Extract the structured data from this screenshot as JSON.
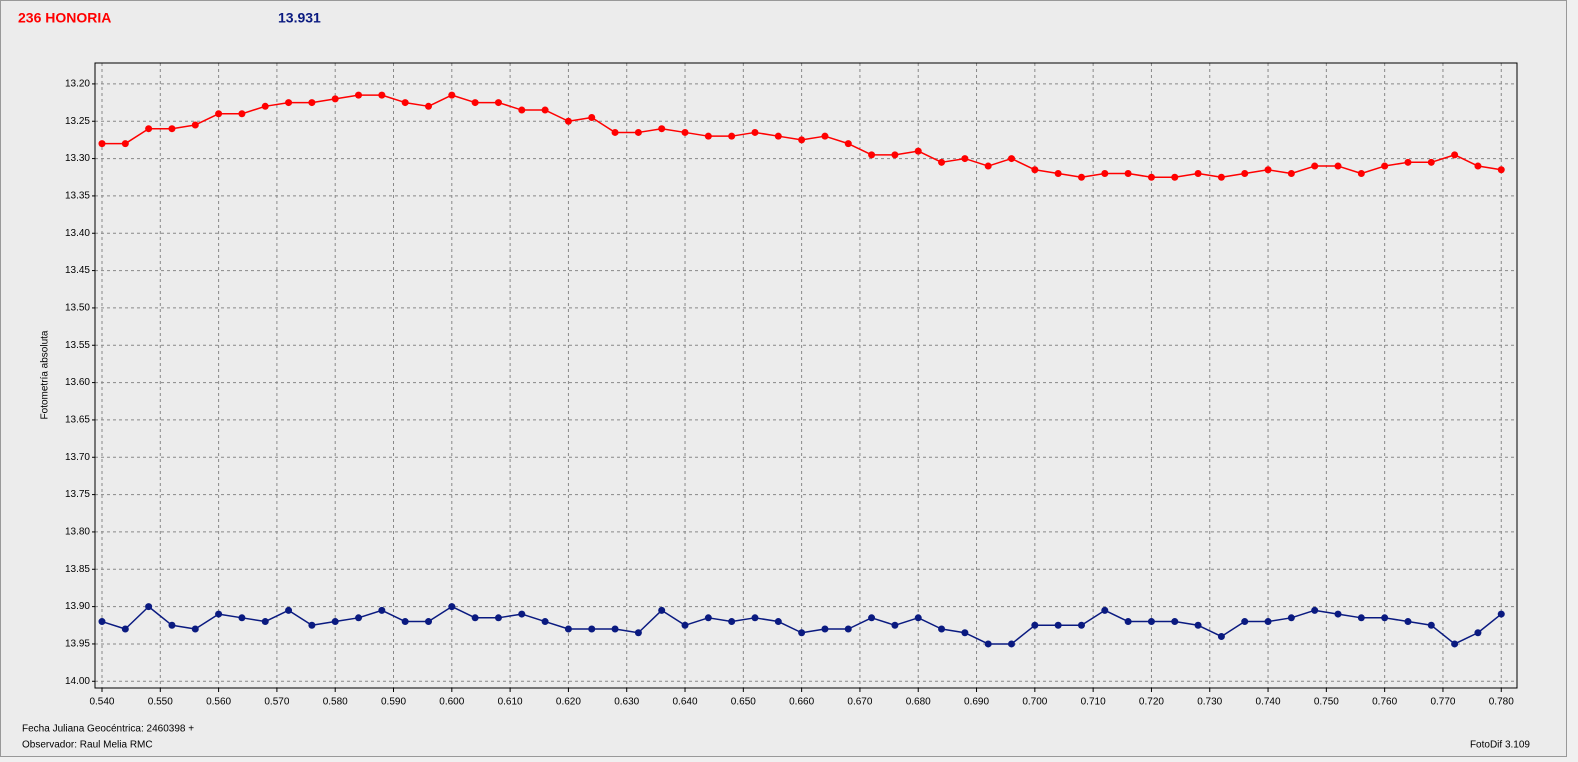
{
  "chart_data": {
    "type": "scatter",
    "title": "236 HONORIA",
    "subtitle": "13.931",
    "y_label": "Fotometría absoluta",
    "x_label": "Fecha Juliana Geocéntrica: 2460398 +",
    "observer": "Observador: Raul Melia RMC",
    "software": "FotoDif 3.109",
    "grid": true,
    "line": true,
    "xlim": [
      0.5388,
      0.7827
    ],
    "ylim": [
      14.009,
      13.172
    ],
    "xticks": [
      {
        "value": 0.54,
        "label": "0.540"
      },
      {
        "value": 0.55,
        "label": "0.550"
      },
      {
        "value": 0.56,
        "label": "0.560"
      },
      {
        "value": 0.57,
        "label": "0.570"
      },
      {
        "value": 0.58,
        "label": "0.580"
      },
      {
        "value": 0.59,
        "label": "0.590"
      },
      {
        "value": 0.6,
        "label": "0.600"
      },
      {
        "value": 0.61,
        "label": "0.610"
      },
      {
        "value": 0.62,
        "label": "0.620"
      },
      {
        "value": 0.63,
        "label": "0.630"
      },
      {
        "value": 0.64,
        "label": "0.640"
      },
      {
        "value": 0.65,
        "label": "0.650"
      },
      {
        "value": 0.66,
        "label": "0.660"
      },
      {
        "value": 0.67,
        "label": "0.670"
      },
      {
        "value": 0.68,
        "label": "0.680"
      },
      {
        "value": 0.69,
        "label": "0.690"
      },
      {
        "value": 0.7,
        "label": "0.700"
      },
      {
        "value": 0.71,
        "label": "0.710"
      },
      {
        "value": 0.72,
        "label": "0.720"
      },
      {
        "value": 0.73,
        "label": "0.730"
      },
      {
        "value": 0.74,
        "label": "0.740"
      },
      {
        "value": 0.75,
        "label": "0.750"
      },
      {
        "value": 0.76,
        "label": "0.760"
      },
      {
        "value": 0.77,
        "label": "0.770"
      },
      {
        "value": 0.78,
        "label": "0.780"
      }
    ],
    "yticks": [
      {
        "value": 13.2,
        "label": "13.20"
      },
      {
        "value": 13.25,
        "label": "13.25"
      },
      {
        "value": 13.3,
        "label": "13.30"
      },
      {
        "value": 13.35,
        "label": "13.35"
      },
      {
        "value": 13.4,
        "label": "13.40"
      },
      {
        "value": 13.45,
        "label": "13.45"
      },
      {
        "value": 13.5,
        "label": "13.50"
      },
      {
        "value": 13.55,
        "label": "13.55"
      },
      {
        "value": 13.6,
        "label": "13.60"
      },
      {
        "value": 13.65,
        "label": "13.65"
      },
      {
        "value": 13.7,
        "label": "13.70"
      },
      {
        "value": 13.75,
        "label": "13.75"
      },
      {
        "value": 13.8,
        "label": "13.80"
      },
      {
        "value": 13.85,
        "label": "13.85"
      },
      {
        "value": 13.9,
        "label": "13.90"
      },
      {
        "value": 13.95,
        "label": "13.95"
      },
      {
        "value": 14.0,
        "label": "14.00"
      }
    ],
    "x": [
      0.54,
      0.544,
      0.548,
      0.552,
      0.556,
      0.56,
      0.564,
      0.568,
      0.572,
      0.576,
      0.58,
      0.584,
      0.588,
      0.592,
      0.596,
      0.6,
      0.604,
      0.608,
      0.612,
      0.616,
      0.62,
      0.624,
      0.628,
      0.632,
      0.636,
      0.64,
      0.644,
      0.648,
      0.652,
      0.656,
      0.66,
      0.664,
      0.668,
      0.672,
      0.676,
      0.68,
      0.684,
      0.688,
      0.692,
      0.696,
      0.7,
      0.704,
      0.708,
      0.712,
      0.716,
      0.72,
      0.724,
      0.728,
      0.732,
      0.736,
      0.74,
      0.744,
      0.748,
      0.752,
      0.756,
      0.76,
      0.764,
      0.768,
      0.772,
      0.776,
      0.78
    ],
    "series": [
      {
        "color": "#ff0000",
        "values": [
          13.28,
          13.28,
          13.26,
          13.26,
          13.255,
          13.24,
          13.24,
          13.23,
          13.225,
          13.225,
          13.22,
          13.215,
          13.215,
          13.225,
          13.23,
          13.215,
          13.225,
          13.225,
          13.235,
          13.235,
          13.25,
          13.245,
          13.265,
          13.265,
          13.26,
          13.265,
          13.27,
          13.27,
          13.265,
          13.27,
          13.275,
          13.27,
          13.28,
          13.295,
          13.295,
          13.29,
          13.305,
          13.3,
          13.31,
          13.3,
          13.315,
          13.32,
          13.325,
          13.32,
          13.32,
          13.325,
          13.325,
          13.32,
          13.325,
          13.32,
          13.315,
          13.32,
          13.31,
          13.31,
          13.32,
          13.31,
          13.305,
          13.305,
          13.295,
          13.31,
          13.315
        ]
      },
      {
        "color": "#0a1a80",
        "values": [
          13.92,
          13.93,
          13.9,
          13.925,
          13.93,
          13.91,
          13.915,
          13.92,
          13.905,
          13.925,
          13.92,
          13.915,
          13.905,
          13.92,
          13.92,
          13.9,
          13.915,
          13.915,
          13.91,
          13.92,
          13.93,
          13.93,
          13.93,
          13.935,
          13.905,
          13.925,
          13.915,
          13.92,
          13.915,
          13.92,
          13.935,
          13.93,
          13.93,
          13.915,
          13.925,
          13.915,
          13.93,
          13.935,
          13.95,
          13.95,
          13.925,
          13.925,
          13.925,
          13.905,
          13.92,
          13.92,
          13.92,
          13.925,
          13.94,
          13.92,
          13.92,
          13.915,
          13.905,
          13.91,
          13.915,
          13.915,
          13.92,
          13.925,
          13.95,
          13.935,
          13.91
        ]
      }
    ]
  }
}
